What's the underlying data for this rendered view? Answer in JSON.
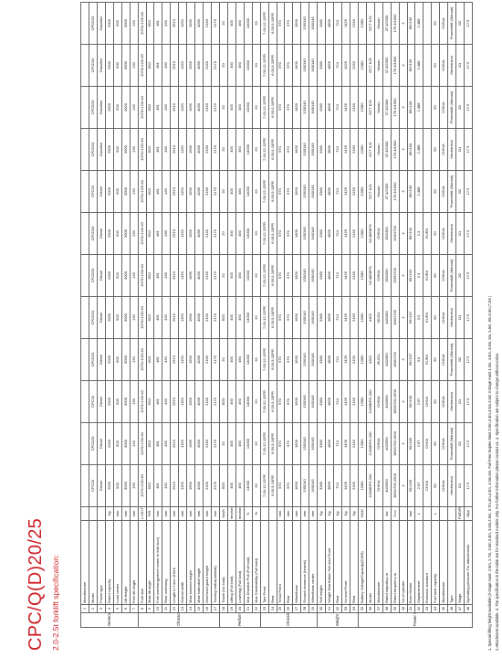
{
  "title": "CPC/Q(D)20/25",
  "subtitle": "2.0-2.5t forklift specification:",
  "models": [
    "CPC20",
    "CPCD20",
    "CPC20",
    "CPCD20",
    "CPCD20",
    "CPCD20",
    "CPCD20",
    "CPC20",
    "CPCD20",
    "CPCD20",
    "CPCD20",
    "CPCD20"
  ],
  "rows": [
    {
      "no": "1",
      "label": "Manufacturer",
      "unit": "",
      "vals": [
        "",
        "",
        "",
        "",
        "",
        "",
        "",
        "",
        "",
        "",
        "",
        ""
      ]
    },
    {
      "no": "2",
      "label": "Model",
      "unit": "",
      "vals": [
        "CPC20",
        "CPCD20",
        "CPC20",
        "CPCD20",
        "CPCD20",
        "CPCD20",
        "CPCD20",
        "CPC20",
        "CPCD20",
        "CPCD20",
        "CPCD20",
        "CPCD20"
      ]
    },
    {
      "no": "3",
      "label": "Power type",
      "unit": "",
      "vals": [
        "Diesel",
        "Diesel",
        "Diesel",
        "Diesel",
        "Diesel",
        "Diesel",
        "Diesel",
        "Diesel",
        "Gasoline",
        "Gasoline",
        "Gasoline",
        "Gasoline"
      ]
    },
    {
      "no": "4",
      "label": "Rated capacity",
      "unit": "Kg",
      "vals": [
        "2000",
        "2000",
        "2000",
        "2000",
        "2000",
        "2000",
        "2000",
        "2000",
        "2000",
        "2000",
        "2000",
        "2000"
      ]
    },
    {
      "no": "5",
      "label": "Load center",
      "unit": "mm",
      "vals": [
        "500",
        "500",
        "500",
        "500",
        "500",
        "500",
        "500",
        "500",
        "500",
        "500",
        "500",
        "500"
      ]
    },
    {
      "no": "6",
      "label": "Lift Height",
      "unit": "mm",
      "vals": [
        "3000",
        "3000",
        "3000",
        "3000",
        "3000",
        "3000",
        "3000",
        "3000",
        "3000",
        "3000",
        "3000",
        "3000"
      ]
    },
    {
      "no": "7",
      "label": "Free lift height",
      "unit": "mm",
      "vals": [
        "130",
        "130",
        "130",
        "130",
        "130",
        "130",
        "130",
        "130",
        "130",
        "130",
        "130",
        "130"
      ]
    },
    {
      "no": "8",
      "label": "Fork size",
      "unit": "L×W×T",
      "vals": [
        "1070×120×40",
        "1070×120×40",
        "1070×120×40",
        "1070×120×40",
        "1070×120×40",
        "1070×120×40",
        "1070×120×40",
        "1070×120×40",
        "1070×120×40",
        "1070×120×40",
        "1070×120×40",
        "1070×120×40"
      ]
    },
    {
      "no": "9",
      "label": "Mast tilt angle",
      "unit": "F/R",
      "vals": [
        "6/12",
        "6/12",
        "6/12",
        "6/12",
        "6/12",
        "6/12",
        "6/12",
        "6/12",
        "6/12",
        "6/12",
        "6/12",
        "6/12"
      ]
    },
    {
      "no": "10",
      "label": "Fork overhang(wheel center to fork face)",
      "unit": "mm",
      "vals": [
        "481",
        "481",
        "481",
        "481",
        "481",
        "481",
        "481",
        "481",
        "481",
        "481",
        "481",
        "481"
      ]
    },
    {
      "no": "11",
      "label": "Rear overhang",
      "unit": "mm",
      "vals": [
        "430",
        "430",
        "430",
        "430",
        "430",
        "430",
        "430",
        "430",
        "430",
        "430",
        "430",
        "430"
      ]
    },
    {
      "no": "12",
      "label": "Length to f ace of fork",
      "unit": "mm",
      "vals": [
        "2510",
        "2510",
        "2510",
        "2510",
        "2510",
        "2510",
        "2510",
        "2510",
        "2510",
        "2510",
        "2510",
        "2510"
      ]
    },
    {
      "no": "13",
      "label": "Overall width",
      "unit": "mm",
      "vals": [
        "1150",
        "1150",
        "1150",
        "1150",
        "1150",
        "1150",
        "1150",
        "1150",
        "1150",
        "1150",
        "1150",
        "1150"
      ]
    },
    {
      "no": "14",
      "label": "Mast lowered height",
      "unit": "mm",
      "vals": [
        "1995",
        "1995",
        "1995",
        "1995",
        "1995",
        "1995",
        "1995",
        "1995",
        "1995",
        "1995",
        "1995",
        "1995"
      ]
    },
    {
      "no": "15",
      "label": "Mast extended height",
      "unit": "mm",
      "vals": [
        "4030",
        "4030",
        "4030",
        "4030",
        "4030",
        "4030",
        "4030",
        "4030",
        "4030",
        "4030",
        "4030",
        "4030"
      ]
    },
    {
      "no": "16",
      "label": "Overhead guard height",
      "unit": "mm",
      "vals": [
        "2160",
        "2160",
        "2160",
        "2160",
        "2160",
        "2160",
        "2160",
        "2160",
        "2160",
        "2160",
        "2160",
        "2160"
      ]
    },
    {
      "no": "17",
      "label": "Turning radius(outside)",
      "unit": "mm",
      "vals": [
        "2170",
        "2170",
        "2170",
        "2170",
        "2170",
        "2170",
        "2170",
        "2170",
        "2170",
        "2170",
        "2170",
        "2170"
      ]
    },
    {
      "no": "18",
      "label": "Travel (No load)",
      "unit": "Km/h",
      "vals": [
        "8/20",
        "20",
        "8/20",
        "20",
        "8/20",
        "20",
        "20",
        "20",
        "20",
        "20",
        "20",
        "20"
      ]
    },
    {
      "no": "19",
      "label": "Lifting (Full load)",
      "unit": "mm/sec",
      "vals": [
        "400",
        "400",
        "400",
        "400",
        "400",
        "400",
        "400",
        "400",
        "400",
        "400",
        "400",
        "400"
      ]
    },
    {
      "no": "20",
      "label": "Lowering (Full load)",
      "unit": "mm/sec",
      "vals": [
        "450",
        "450",
        "450",
        "450",
        "450",
        "450",
        "450",
        "450",
        "450",
        "450",
        "450",
        "450"
      ]
    },
    {
      "no": "21",
      "label": "Max Drawbar Pull (Full load)",
      "unit": "N",
      "vals": [
        "14000",
        "14000",
        "14000",
        "14000",
        "14000",
        "14000",
        "14000",
        "14000",
        "14000",
        "14000",
        "14000",
        "14000"
      ]
    },
    {
      "no": "22",
      "label": "Max Gradeability (Full load)",
      "unit": "%",
      "vals": [
        "20",
        "20",
        "20",
        "20",
        "20",
        "20",
        "20",
        "20",
        "20",
        "20",
        "20",
        "20"
      ]
    },
    {
      "no": "23",
      "label": "Tyre Front",
      "unit": "",
      "vals": [
        "7.00-12-12PR",
        "7.00-12-12PR",
        "7.00-12-12PR",
        "7.00-12-12PR",
        "7.00-12-12PR",
        "7.00-12-12PR",
        "7.00-12-12PR",
        "7.00-12-12PR",
        "7.00-12-12PR",
        "7.00-12-12PR",
        "7.00-12-12PR",
        "7.00-12-12PR"
      ]
    },
    {
      "no": "24",
      "label": "Rear",
      "unit": "",
      "vals": [
        "6.00-9-10PR",
        "6.00-9-10PR",
        "6.00-9-10PR",
        "6.00-9-10PR",
        "6.00-9-10PR",
        "6.00-9-10PR",
        "6.00-9-10PR",
        "6.00-9-10PR",
        "6.00-9-10PR",
        "6.00-9-10PR",
        "6.00-9-10PR",
        "6.00-9-10PR"
      ]
    },
    {
      "no": "25",
      "label": "Tread Front",
      "unit": "mm",
      "vals": [
        "970",
        "970",
        "970",
        "970",
        "970",
        "970",
        "970",
        "970",
        "970",
        "970",
        "970",
        "970"
      ]
    },
    {
      "no": "26",
      "label": "Rear",
      "unit": "mm",
      "vals": [
        "970",
        "970",
        "970",
        "970",
        "970",
        "970",
        "970",
        "970",
        "970",
        "970",
        "970",
        "970"
      ]
    },
    {
      "no": "27",
      "label": "Wheelbase",
      "unit": "mm",
      "vals": [
        "1600",
        "1600",
        "1600",
        "1600",
        "1600",
        "1600",
        "1600",
        "1600",
        "1600",
        "1600",
        "1600",
        "1600"
      ]
    },
    {
      "no": "28",
      "label": "Ground clearance (lowest)",
      "unit": "mm",
      "vals": [
        "130/140",
        "130/140",
        "130/140",
        "130/140",
        "130/140",
        "130/140",
        "130/140",
        "130/140",
        "130/140",
        "130/140",
        "130/140",
        "130/140"
      ]
    },
    {
      "no": "29",
      "label": "Wheelbase center",
      "unit": "mm",
      "vals": [
        "160/145",
        "160/145",
        "160/145",
        "160/145",
        "160/145",
        "160/145",
        "160/145",
        "160/145",
        "160/145",
        "160/145",
        "160/145",
        "160/145"
      ]
    },
    {
      "no": "30",
      "label": "Self weight",
      "unit": "Kg",
      "vals": [
        "3380",
        "3380",
        "3380",
        "3380",
        "3380",
        "3380",
        "3380",
        "3380",
        "3380",
        "3380",
        "3380",
        "3380"
      ]
    },
    {
      "no": "31",
      "label": "Weight Distribution Full load Front",
      "unit": "Kg",
      "vals": [
        "4896",
        "4896",
        "4896",
        "4896",
        "4896",
        "4896",
        "4896",
        "4896",
        "4896",
        "4896",
        "4896",
        "4896"
      ]
    },
    {
      "no": "32",
      "label": "Rear",
      "unit": "Kg",
      "vals": [
        "724",
        "724",
        "724",
        "724",
        "724",
        "724",
        "724",
        "724",
        "724",
        "724",
        "724",
        "724"
      ]
    },
    {
      "no": "33",
      "label": "No load Front",
      "unit": "Kg",
      "vals": [
        "1426",
        "1426",
        "1426",
        "1426",
        "1426",
        "1426",
        "1426",
        "1426",
        "1426",
        "1426",
        "1426",
        "1426"
      ]
    },
    {
      "no": "34",
      "label": "Rear",
      "unit": "Kg",
      "vals": [
        "2150",
        "2150",
        "2150",
        "2150",
        "2150",
        "2150",
        "2150",
        "2150",
        "2150",
        "2150",
        "2150",
        "2150"
      ]
    },
    {
      "no": "35",
      "label": "Battery Voltage/Capacity(20HR)",
      "unit": "V/AH",
      "vals": [
        "12/80",
        "12/80",
        "12/80",
        "12/80",
        "12/80",
        "12/80",
        "12/80",
        "12/80",
        "12/80",
        "12/80",
        "12/80",
        "12/80"
      ]
    },
    {
      "no": "36",
      "label": "Model",
      "unit": "",
      "vals": [
        "C490BPG-200",
        "C490BPG-200",
        "C490BPG-200",
        "4JG2",
        "4JG2",
        "NC485BPG",
        "NC485BPG",
        "GCT K21",
        "GCT K21",
        "GCT K25",
        "GCT K25",
        "GCT K25"
      ]
    },
    {
      "no": "37",
      "label": "Manufacturer",
      "unit": "",
      "vals": [
        "CHINA",
        "CHINA",
        "CHINA",
        "ISUZU",
        "ISUZU",
        "CHINA",
        "CHINA",
        "Nissan",
        "Nissan",
        "Nissan",
        "Nissan",
        "Nissan"
      ]
    },
    {
      "no": "38",
      "label": "Rated output/r.p.m",
      "unit": "kw",
      "vals": [
        "40/2650",
        "40/2650",
        "40/2650",
        "44/2450",
        "44/2450",
        "35/2450",
        "35/2450",
        "37.4/2300",
        "37.4/2300",
        "37.4/2300",
        "37.4/2300",
        "37.4/2300"
      ]
    },
    {
      "no": "39",
      "label": "Rated torque/r.p.m",
      "unit": "N.m",
      "vals": [
        "186/1700-1900",
        "186/1700-1900",
        "186/1700-1900",
        "186/1700",
        "186/1700",
        "156/1700",
        "156/1700",
        "176.4/1600",
        "176.4/1600",
        "176.4/1600",
        "176.4/1600",
        "176.4/1600"
      ]
    },
    {
      "no": "40",
      "label": "No.of cylinder",
      "unit": "",
      "vals": [
        "4",
        "4",
        "4",
        "4",
        "4",
        "4",
        "4",
        "4",
        "4",
        "4",
        "4",
        "4"
      ]
    },
    {
      "no": "41",
      "label": "Bore×Stroke",
      "unit": "mm",
      "vals": [
        "90×105",
        "90×105",
        "90×105",
        "95×107",
        "95×107",
        "85×102",
        "85×102",
        "89×100",
        "89×100",
        "89×100",
        "89×100",
        "89×100"
      ]
    },
    {
      "no": "42",
      "label": "Displacement",
      "unit": "L",
      "vals": [
        "2.67",
        "2.67",
        "2.67",
        "3.0",
        "3.0",
        "2.3",
        "2.3",
        "2.488",
        "2.488",
        "2.488",
        "2.488",
        "2.488"
      ]
    },
    {
      "no": "43",
      "label": "Emission standard",
      "unit": "",
      "vals": [
        "CHNII",
        "CHNII",
        "CHNII",
        "EURII",
        "EURII",
        "EURII",
        "EURII",
        "",
        "",
        "",
        "",
        ""
      ]
    },
    {
      "no": "44",
      "label": "Fuel tank capacity",
      "unit": "L",
      "vals": [
        "60",
        "60",
        "60",
        "60",
        "60",
        "60",
        "60",
        "60",
        "60",
        "60",
        "60",
        "60"
      ]
    },
    {
      "no": "45",
      "label": "Manufacturer",
      "unit": "",
      "vals": [
        "CHINA",
        "CHINA",
        "CHINA",
        "CHINA",
        "CHINA",
        "CHINA",
        "CHINA",
        "CHINA",
        "CHINA",
        "CHINA",
        "CHINA",
        "CHINA"
      ]
    },
    {
      "no": "46",
      "label": "Type",
      "unit": "",
      "vals": [
        "Mechanical",
        "Powershift (Manual)",
        "Mechanical",
        "Powershift (Manual)",
        "Mechanical",
        "Powershift (Manual)",
        "Mechanical",
        "Powershift (Manual)",
        "Mechanical",
        "Powershift (Manual)",
        "Mechanical",
        "Powershift (Manual)"
      ]
    },
    {
      "no": "47",
      "label": "Stage",
      "unit": "FWD/RVS",
      "vals": [
        "1/1",
        "2/2",
        "1/1",
        "2/2",
        "1/1",
        "2/2",
        "1/1",
        "2/2",
        "1/1",
        "2/2",
        "1/1",
        "2/2"
      ]
    },
    {
      "no": "48",
      "label": "Operating pressure For attachments",
      "unit": "Mpa",
      "vals": [
        "17.5",
        "17.5",
        "17.5",
        "17.5",
        "17.5",
        "17.5",
        "17.5",
        "17.5",
        "17.5",
        "17.5",
        "17.5",
        "17.5"
      ]
    }
  ],
  "groups": [
    {
      "label": "General",
      "span": 7
    },
    {
      "label": "Characteristics & Dimensions",
      "span": 10
    },
    {
      "label": "Performance",
      "span": 5
    },
    {
      "label": "Chassis",
      "span": 7
    },
    {
      "label": "Weight",
      "span": 5
    },
    {
      "label": "Power & transmission",
      "span": 14
    }
  ],
  "footnotes": [
    "1. Special lifting height available (2-stage mast: 2.5m, 2.7m, 3.0m,3.3m, 3.5m,3.6m, 3.7m,4m,4.3m, 4.5m,5m.  Full Free Duplex Mast 3.0m,3.3m,3.5m,3.6m 3-stage mast 4.3m, 4.5m, 4.8m, 5m, 5.5m, 6m,6.5m,7.0m )",
    "2.Attachment available.   3. The specification in the table are for standard models only.  For further information please contact us.     4. Specification are subject to change without notice."
  ]
}
